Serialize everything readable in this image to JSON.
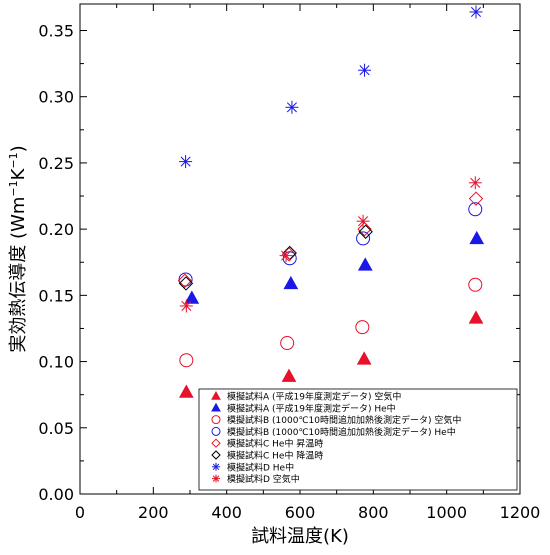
{
  "chart_data": {
    "type": "scatter",
    "xlabel": "試料温度(K)",
    "ylabel_main": "実効熱伝導度 (Wm",
    "ylabel_sup1": "−1",
    "ylabel_mid": "K",
    "ylabel_sup2": "−1",
    "ylabel_end": ")",
    "xlim": [
      0,
      1200
    ],
    "ylim": [
      0,
      0.37
    ],
    "xticks": [
      0,
      200,
      400,
      600,
      800,
      1000,
      1200
    ],
    "yticks": [
      0.0,
      0.05,
      0.1,
      0.15,
      0.2,
      0.25,
      0.3,
      0.35
    ],
    "xtick_labels": [
      "0",
      "200",
      "400",
      "600",
      "800",
      "1000",
      "1200"
    ],
    "ytick_labels": [
      "0.00",
      "0.05",
      "0.10",
      "0.15",
      "0.20",
      "0.25",
      "0.30",
      "0.35"
    ],
    "grid": false,
    "legend_position": "bottom-right",
    "series": [
      {
        "name": "模擬試料A (平成19年度測定データ) 空気中",
        "marker": "triangle-filled",
        "color": "#e8102a",
        "x": [
          290,
          570,
          775,
          1080
        ],
        "y": [
          0.077,
          0.089,
          0.102,
          0.133
        ]
      },
      {
        "name": "模擬試料A (平成19年度測定データ) He中",
        "marker": "triangle-filled",
        "color": "#1a18e6",
        "x": [
          305,
          575,
          778,
          1082
        ],
        "y": [
          0.148,
          0.159,
          0.173,
          0.193
        ]
      },
      {
        "name": "模擬試料B (1000℃10時間追加加熱後測定データ) 空気中",
        "marker": "circle-open",
        "color": "#e8102a",
        "x": [
          290,
          565,
          770,
          1078
        ],
        "y": [
          0.101,
          0.114,
          0.126,
          0.158
        ]
      },
      {
        "name": "模擬試料B (1000℃10時間追加加熱後測定データ) He中",
        "marker": "circle-open",
        "color": "#1a18e6",
        "x": [
          288,
          572,
          772,
          1078
        ],
        "y": [
          0.162,
          0.178,
          0.193,
          0.215
        ]
      },
      {
        "name": "模擬試料C He中 昇温時",
        "marker": "diamond-open",
        "color": "#e8102a",
        "x": [
          286,
          570,
          776,
          1080
        ],
        "y": [
          0.161,
          0.181,
          0.2,
          0.223
        ]
      },
      {
        "name": "模擬試料C He中 降温時",
        "marker": "diamond-open",
        "color": "#000000",
        "x": [
          289,
          572,
          779
        ],
        "y": [
          0.159,
          0.182,
          0.198
        ]
      },
      {
        "name": "模擬試料D He中",
        "marker": "star",
        "color": "#1a18e6",
        "x": [
          288,
          578,
          776,
          1080
        ],
        "y": [
          0.251,
          0.292,
          0.32,
          0.364
        ]
      },
      {
        "name": "模擬試料D 空気中",
        "marker": "star",
        "color": "#e8102a",
        "x": [
          290,
          562,
          772,
          1078
        ],
        "y": [
          0.142,
          0.18,
          0.206,
          0.235
        ]
      }
    ]
  }
}
